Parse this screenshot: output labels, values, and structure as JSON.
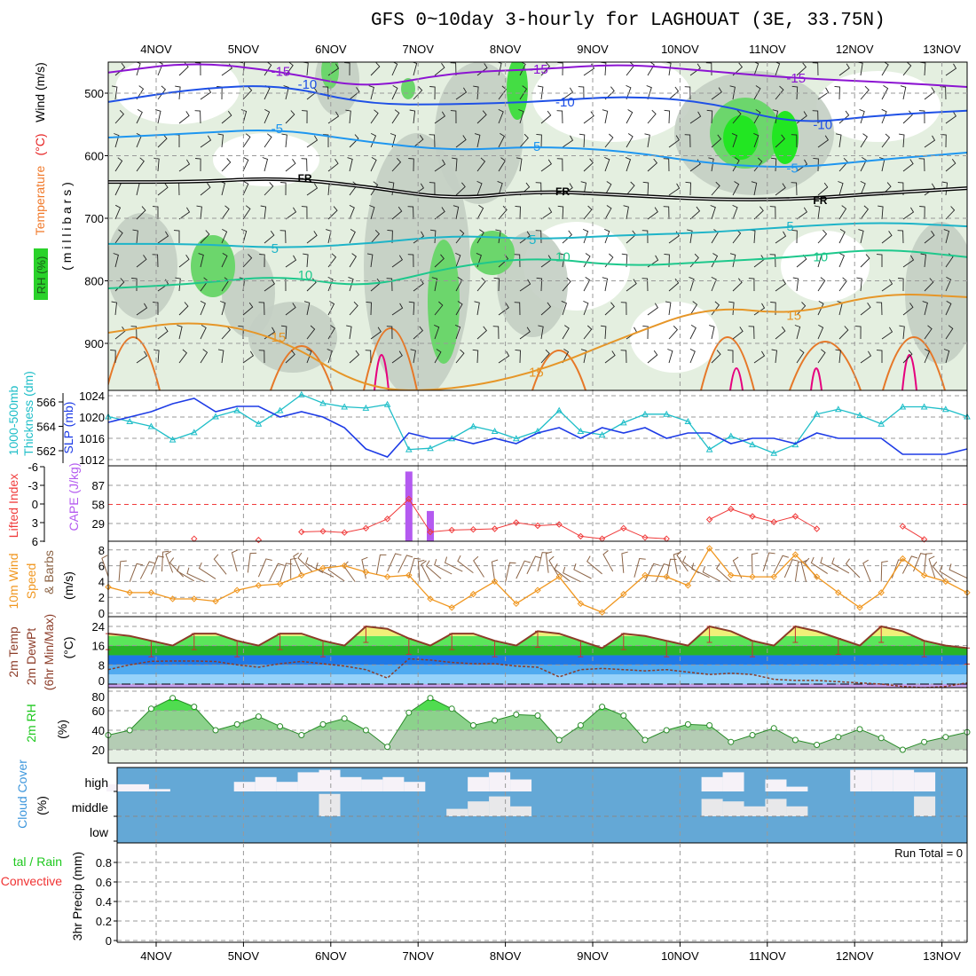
{
  "title": "GFS 0~10day 3-hourly for LAGHOUAT (3E, 33.75N)",
  "dates": [
    "4NOV",
    "5NOV",
    "6NOV",
    "7NOV",
    "8NOV",
    "9NOV",
    "10NOV",
    "11NOV",
    "12NOV",
    "13NOV"
  ],
  "labels": {
    "upper": {
      "wind": "Wind (m/s)",
      "temperature": "Temperature",
      "temp_unit": "(°C)",
      "rh": "RH (%)",
      "millibars": "( m i l l i b a r s )"
    },
    "slp": {
      "thickness1": "1000-500mb",
      "thickness2": "Thickness (dm)",
      "slp": "SLP (mb)"
    },
    "cape": {
      "li": "Lifted Index",
      "cape": "CAPE (J/kg)"
    },
    "wind": {
      "l1": "10m Wind",
      "l2": "Speed",
      "l3": "& Barbs",
      "l4": "(m/s)"
    },
    "temp": {
      "l1": "2m Temp",
      "l2": "2m DewPt",
      "l3": "(6hr Min/Max)",
      "l4": "(°C)"
    },
    "rh": {
      "l1": "2m RH",
      "l2": "(%)"
    },
    "cloud": {
      "l1": "Cloud Cover",
      "l2": "(%)",
      "high": "high",
      "middle": "middle",
      "low": "low"
    },
    "precip": {
      "l1": "tal / Rain",
      "l2": "Convective",
      "l3": "3hr Precip (mm)",
      "run_total": "Run Total = 0"
    }
  },
  "colors": {
    "slp": "#1e3ce6",
    "thickness": "#1ebec8",
    "li": "#f03c3c",
    "cape": "#b45af0",
    "wind": "#f0961e",
    "barb": "#8c6446",
    "temp": "#8c3c28",
    "rh_line": "#2a8c2a"
  },
  "chart_data": [
    {
      "type": "line",
      "title": "Upper-air temperature / wind / RH cross-section",
      "ylabel": "millibars",
      "yticks": [
        "500",
        "600",
        "700",
        "800",
        "900"
      ],
      "ylim": [
        450,
        975
      ],
      "x_step_hours": 24,
      "contours": [
        {
          "label": "-15",
          "color": "#8c14d2",
          "pressure": [
            467,
            450,
            465,
            493,
            467,
            462,
            453,
            465,
            476,
            482,
            490
          ]
        },
        {
          "label": "-10",
          "color": "#1e50e6",
          "pressure": [
            514,
            493,
            486,
            518,
            518,
            514,
            504,
            514,
            550,
            535,
            528
          ]
        },
        {
          "label": "-5",
          "color": "#1e96f0",
          "pressure": [
            571,
            564,
            557,
            578,
            592,
            585,
            592,
            613,
            620,
            606,
            595
          ]
        },
        {
          "label": "FR",
          "color": "#000000",
          "pressure": [
            642,
            642,
            635,
            649,
            670,
            656,
            663,
            670,
            670,
            660,
            652
          ]
        },
        {
          "label": "5",
          "color": "#1eb4c8",
          "pressure": [
            741,
            741,
            748,
            741,
            727,
            734,
            727,
            723,
            713,
            706,
            713
          ]
        },
        {
          "label": "10",
          "color": "#1ec88c",
          "pressure": [
            812,
            805,
            791,
            812,
            777,
            762,
            777,
            770,
            762,
            748,
            762
          ]
        },
        {
          "label": "15",
          "color": "#e69628",
          "pressure": [
            883,
            862,
            890,
            975,
            975,
            946,
            890,
            840,
            855,
            819,
            826
          ]
        }
      ]
    },
    {
      "type": "line",
      "title": "SLP and 1000-500mb thickness",
      "x_step_hours": 6,
      "slp_ticks": [
        "1024",
        "1020",
        "1016",
        "1012"
      ],
      "thickness_ticks": [
        "566",
        "564",
        "562"
      ],
      "series": [
        {
          "name": "SLP (mb)",
          "values": [
            1019,
            1020,
            1021,
            1022.5,
            1023.5,
            1021,
            1022,
            1022,
            1020,
            1021,
            1020,
            1018,
            1014,
            1012.5,
            1017,
            1016,
            1016,
            1015,
            1016,
            1015,
            1017,
            1018,
            1016,
            1018,
            1017,
            1018,
            1016,
            1017,
            1017,
            1015,
            1016,
            1016,
            1015,
            1017,
            1016,
            1016,
            1016,
            1013,
            1013,
            1013,
            1014
          ]
        },
        {
          "name": "Thickness (dm)",
          "values": [
            564.8,
            564.4,
            564.0,
            562.9,
            563.5,
            564.8,
            565.3,
            564.2,
            565.3,
            566.6,
            565.9,
            565.6,
            565.5,
            565.8,
            562.1,
            562.2,
            563.0,
            564.0,
            563.6,
            563.0,
            563.6,
            565.3,
            563.6,
            563.3,
            564.3,
            565.0,
            565.0,
            564.4,
            562.1,
            563.2,
            562.5,
            561.8,
            562.5,
            565.0,
            565.4,
            564.9,
            564.2,
            565.6,
            565.6,
            565.4,
            564.8
          ]
        }
      ]
    },
    {
      "type": "line",
      "title": "Lifted Index and CAPE",
      "x_step_hours": 6,
      "li_ticks": [
        "-6",
        "-3",
        "0",
        "3",
        "6"
      ],
      "cape_ticks": [
        "87",
        "58",
        "29"
      ],
      "series": [
        {
          "name": "Lifted Index",
          "values": [
            null,
            null,
            null,
            null,
            5.6,
            null,
            null,
            5.8,
            null,
            4.5,
            4.4,
            4.6,
            3.9,
            2.4,
            -0.8,
            4.5,
            4.2,
            4.1,
            4.0,
            3.0,
            3.5,
            3.3,
            5.2,
            5.6,
            3.9,
            5.4,
            5.6,
            null,
            2.5,
            0.8,
            2.0,
            2.9,
            2.0,
            4.0,
            null,
            null,
            null,
            3.6,
            5.7,
            null,
            null
          ]
        },
        {
          "name": "CAPE (J/kg)",
          "bars": [
            {
              "hour": 84,
              "value": 108
            },
            {
              "hour": 90,
              "value": 48
            }
          ]
        }
      ]
    },
    {
      "type": "line",
      "title": "10m Wind Speed",
      "x_step_hours": 6,
      "ylabel": "m/s",
      "yticks": [
        "0",
        "2",
        "4",
        "6",
        "8"
      ],
      "ylim": [
        0,
        8
      ],
      "values": [
        3.3,
        2.6,
        2.6,
        1.8,
        1.8,
        1.5,
        2.9,
        3.5,
        3.7,
        4.8,
        5.7,
        6.0,
        5.2,
        4.6,
        4.8,
        1.8,
        0.7,
        2.4,
        4.0,
        1.2,
        2.9,
        4.6,
        1.2,
        0.1,
        2.4,
        4.8,
        4.6,
        3.5,
        8.2,
        4.8,
        4.6,
        4.6,
        7.4,
        4.6,
        2.6,
        0.7,
        2.6,
        6.9,
        4.8,
        4.0,
        2.6
      ]
    },
    {
      "type": "area",
      "title": "2m Temperature and Dew Point",
      "x_step_hours": 6,
      "ylabel": "°C",
      "yticks": [
        "0",
        "8",
        "16",
        "24"
      ],
      "ylim": [
        -2,
        26
      ],
      "series": [
        {
          "name": "2m Temp",
          "values": [
            21,
            20,
            18,
            16,
            21,
            21,
            18,
            16,
            21,
            21,
            18,
            16,
            24,
            23,
            19,
            16,
            21,
            21,
            18,
            16,
            22,
            21,
            18,
            15,
            21,
            20,
            18,
            16,
            24,
            22,
            18,
            16,
            24,
            22,
            19,
            16,
            24,
            22,
            18,
            16,
            15
          ]
        },
        {
          "name": "2m DewPt",
          "values": [
            6,
            8,
            9.5,
            9.6,
            9.6,
            9.4,
            8,
            7,
            8.5,
            9.4,
            8.5,
            7.5,
            6,
            2.5,
            10.5,
            10,
            9,
            8.5,
            8.5,
            7.5,
            7,
            3,
            6,
            6.5,
            6,
            5.5,
            6,
            5,
            4,
            4.5,
            4,
            2,
            1.5,
            1.5,
            1,
            0.5,
            0,
            -1,
            -1.5,
            -1,
            0.5
          ]
        }
      ]
    },
    {
      "type": "area",
      "title": "2m RH",
      "x_step_hours": 6,
      "ylabel": "%",
      "yticks": [
        "20",
        "40",
        "60",
        "80"
      ],
      "ylim": [
        0,
        82
      ],
      "values": [
        35,
        40,
        62,
        73,
        64,
        40,
        46,
        54,
        44,
        35,
        46,
        52,
        40,
        23,
        58,
        73,
        62,
        45,
        50,
        56,
        55,
        30,
        45,
        64,
        55,
        30,
        40,
        46,
        45,
        28,
        35,
        42,
        30,
        25,
        33,
        41,
        32,
        20,
        28,
        33,
        38
      ]
    },
    {
      "type": "heatmap",
      "title": "Cloud Cover (%)",
      "x_step_hours": 6,
      "rows": [
        "high",
        "middle",
        "low"
      ],
      "series": [
        {
          "name": "high",
          "values": [
            30,
            30,
            10,
            0,
            0,
            0,
            40,
            60,
            40,
            80,
            90,
            60,
            50,
            60,
            40,
            0,
            0,
            60,
            80,
            50,
            0,
            0,
            0,
            0,
            0,
            0,
            0,
            0,
            60,
            80,
            0,
            50,
            20,
            0,
            0,
            90,
            90,
            90,
            80,
            0,
            0
          ]
        },
        {
          "name": "middle",
          "values": [
            0,
            0,
            0,
            0,
            0,
            0,
            0,
            0,
            0,
            0,
            90,
            0,
            0,
            0,
            0,
            0,
            30,
            60,
            80,
            40,
            0,
            0,
            0,
            0,
            0,
            0,
            0,
            0,
            70,
            60,
            40,
            70,
            40,
            0,
            0,
            0,
            0,
            0,
            80,
            0,
            0
          ]
        },
        {
          "name": "low",
          "values": [
            0,
            0,
            0,
            0,
            0,
            0,
            0,
            0,
            0,
            0,
            0,
            0,
            0,
            0,
            0,
            0,
            0,
            0,
            0,
            0,
            0,
            0,
            0,
            0,
            0,
            0,
            0,
            0,
            0,
            0,
            0,
            0,
            0,
            0,
            0,
            0,
            0,
            0,
            0,
            0,
            0
          ]
        }
      ]
    },
    {
      "type": "bar",
      "title": "3hr Precip (mm)",
      "yticks": [
        "0",
        "0.2",
        "0.4",
        "0.6",
        "0.8"
      ],
      "ylim": [
        0,
        0.9
      ],
      "values": [],
      "run_total": 0
    }
  ]
}
